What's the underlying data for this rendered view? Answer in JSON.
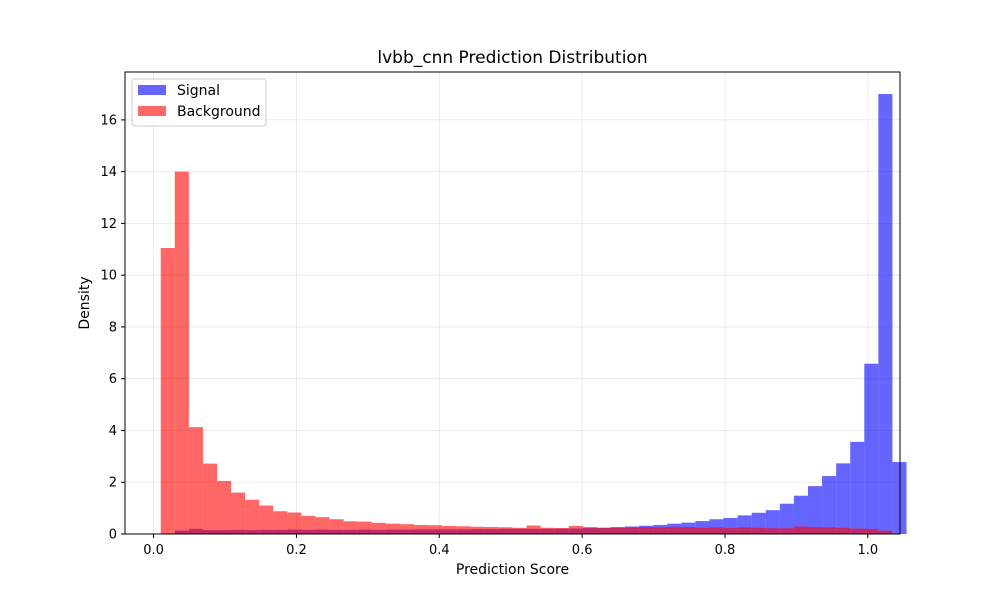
{
  "chart_data": {
    "type": "bar",
    "title": "lvbb_cnn Prediction Distribution",
    "xlabel": "Prediction Score",
    "ylabel": "Density",
    "xlim": [
      -0.04,
      1.045
    ],
    "ylim": [
      0,
      17.85
    ],
    "xticks": [
      0.0,
      0.2,
      0.4,
      0.6,
      0.8,
      1.0
    ],
    "xtick_labels": [
      "0.0",
      "0.2",
      "0.4",
      "0.6",
      "0.8",
      "1.0"
    ],
    "yticks": [
      0,
      2,
      4,
      6,
      8,
      10,
      12,
      14,
      16
    ],
    "ytick_labels": [
      "0",
      "2",
      "4",
      "6",
      "8",
      "10",
      "12",
      "14",
      "16"
    ],
    "grid": true,
    "legend_position": "upper-left",
    "bin_start": 0.01,
    "bin_width": 0.0197,
    "series": [
      {
        "name": "Signal",
        "color": "#0000ff",
        "opacity": 0.6,
        "values": [
          0.0,
          0.13,
          0.2,
          0.15,
          0.15,
          0.16,
          0.15,
          0.16,
          0.16,
          0.17,
          0.16,
          0.17,
          0.16,
          0.16,
          0.17,
          0.16,
          0.17,
          0.17,
          0.18,
          0.18,
          0.18,
          0.18,
          0.19,
          0.19,
          0.2,
          0.2,
          0.2,
          0.2,
          0.21,
          0.21,
          0.23,
          0.24,
          0.26,
          0.29,
          0.32,
          0.35,
          0.4,
          0.44,
          0.5,
          0.57,
          0.62,
          0.72,
          0.82,
          0.92,
          1.17,
          1.48,
          1.85,
          2.24,
          2.73,
          3.56,
          6.58,
          17.0,
          2.78
        ]
      },
      {
        "name": "Background",
        "color": "#ff0000",
        "opacity": 0.6,
        "values": [
          11.05,
          14.0,
          4.13,
          2.72,
          2.05,
          1.6,
          1.32,
          1.1,
          0.88,
          0.83,
          0.7,
          0.65,
          0.57,
          0.49,
          0.48,
          0.43,
          0.4,
          0.38,
          0.35,
          0.34,
          0.31,
          0.3,
          0.28,
          0.27,
          0.26,
          0.24,
          0.33,
          0.24,
          0.23,
          0.31,
          0.27,
          0.24,
          0.26,
          0.25,
          0.27,
          0.26,
          0.28,
          0.27,
          0.24,
          0.26,
          0.23,
          0.26,
          0.24,
          0.22,
          0.22,
          0.29,
          0.27,
          0.26,
          0.24,
          0.21,
          0.2,
          0.13,
          0.0
        ]
      }
    ]
  }
}
